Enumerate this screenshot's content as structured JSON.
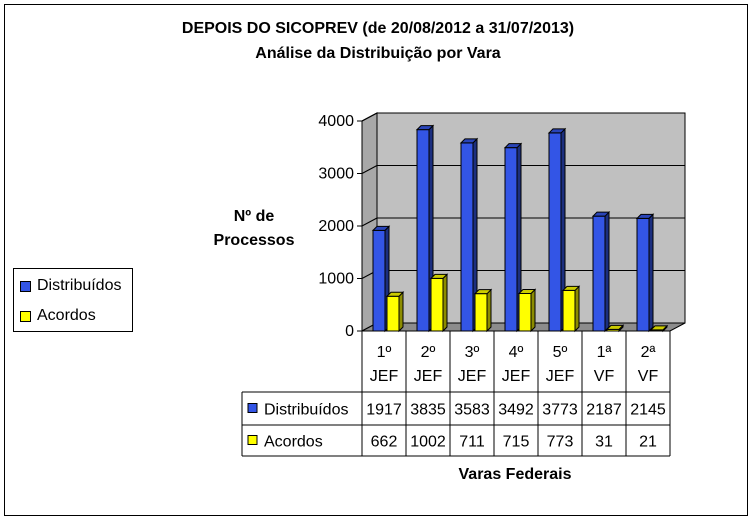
{
  "chart_data": {
    "type": "bar",
    "title": "DEPOIS DO SICOPREV (de 20/08/2012 a 31/07/2013)",
    "subtitle": "Análise da Distribuição por Vara",
    "xlabel": "Varas Federais",
    "ylabel": [
      "Nº de",
      "Processos"
    ],
    "categories": [
      [
        "1º",
        "JEF"
      ],
      [
        "2º",
        "JEF"
      ],
      [
        "3º",
        "JEF"
      ],
      [
        "4º",
        "JEF"
      ],
      [
        "5º",
        "JEF"
      ],
      [
        "1ª",
        "VF"
      ],
      [
        "2ª",
        "VF"
      ]
    ],
    "series": [
      {
        "name": "Distribuídos",
        "values": [
          1917,
          3835,
          3583,
          3492,
          3773,
          2187,
          2145
        ],
        "color": "#3355e6"
      },
      {
        "name": "Acordos",
        "values": [
          662,
          1002,
          711,
          715,
          773,
          31,
          21
        ],
        "color": "#ffff00"
      }
    ],
    "ylim": [
      0,
      4000
    ],
    "yticks": [
      0,
      1000,
      2000,
      3000,
      4000
    ],
    "grid": true,
    "legend": "left",
    "data_table": true
  }
}
